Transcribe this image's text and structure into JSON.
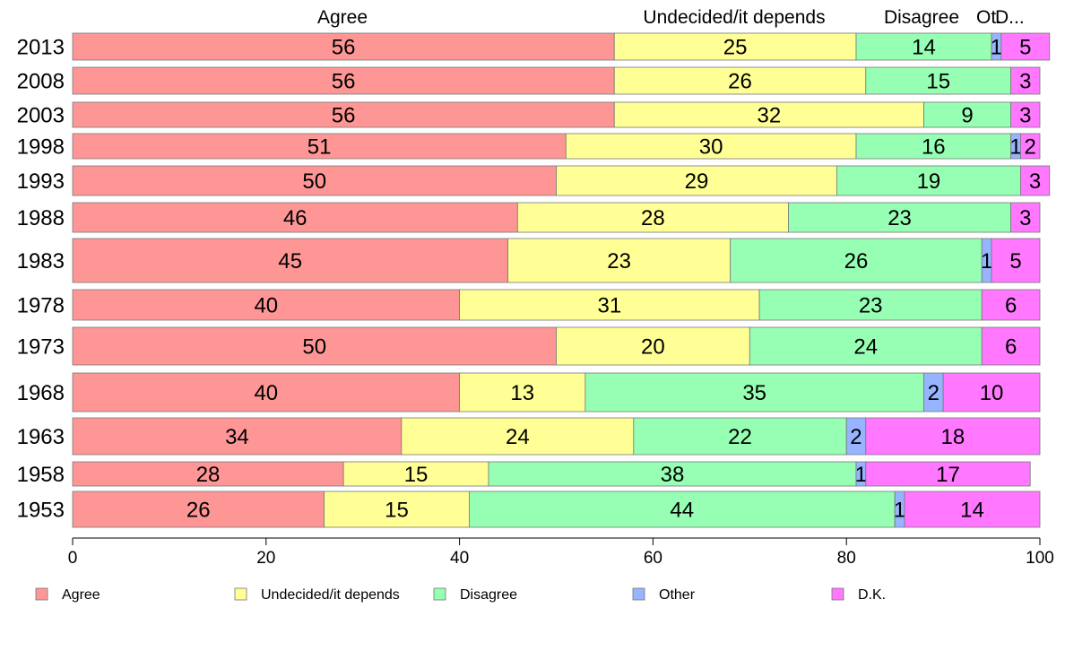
{
  "chart_data": {
    "type": "bar",
    "orientation": "horizontal",
    "stacked": true,
    "xlim": [
      0,
      100
    ],
    "xticks": [
      0,
      20,
      40,
      60,
      80,
      100
    ],
    "grid": false,
    "legend_position": "bottom",
    "top_labels": [
      "Agree",
      "Undecided/it depends",
      "Disagree",
      "Ot.",
      "D..."
    ],
    "categories": [
      "2013",
      "2008",
      "2003",
      "1998",
      "1993",
      "1988",
      "1983",
      "1978",
      "1973",
      "1968",
      "1963",
      "1958",
      "1953"
    ],
    "series": [
      {
        "name": "Agree",
        "color": "#ff9696",
        "values": [
          56,
          56,
          56,
          51,
          50,
          46,
          45,
          40,
          50,
          40,
          34,
          28,
          26
        ]
      },
      {
        "name": "Undecided/it depends",
        "color": "#ffff96",
        "values": [
          25,
          26,
          32,
          30,
          29,
          28,
          23,
          31,
          20,
          13,
          24,
          15,
          15
        ]
      },
      {
        "name": "Disagree",
        "color": "#96ffb4",
        "values": [
          14,
          15,
          9,
          16,
          19,
          23,
          26,
          23,
          24,
          35,
          22,
          38,
          44
        ]
      },
      {
        "name": "Other",
        "color": "#96b4ff",
        "values": [
          1,
          0,
          0,
          1,
          0,
          0,
          1,
          0,
          0,
          2,
          2,
          1,
          1
        ]
      },
      {
        "name": "D.K.",
        "color": "#ff78ff",
        "values": [
          5,
          3,
          3,
          2,
          3,
          3,
          5,
          6,
          6,
          10,
          18,
          17,
          14
        ]
      }
    ]
  }
}
